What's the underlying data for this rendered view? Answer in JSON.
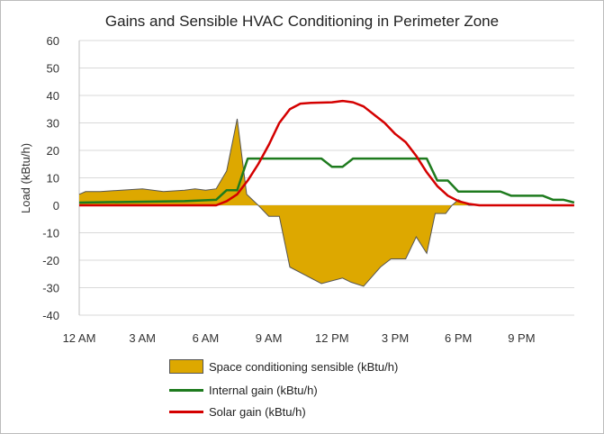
{
  "chart_data": {
    "type": "area+line",
    "title": "Gains and Sensible HVAC Conditioning in Perimeter Zone",
    "xlabel": "",
    "ylabel": "Load (kBtu/h)",
    "ylim": [
      -40,
      60
    ],
    "yticks": [
      -40,
      -30,
      -20,
      -10,
      0,
      10,
      20,
      30,
      40,
      50,
      60
    ],
    "xticks": [
      "12 AM",
      "3 AM",
      "6 AM",
      "9 AM",
      "12 PM",
      "3 PM",
      "6 PM",
      "9 PM"
    ],
    "grid": true,
    "legend": "bottom",
    "series": [
      {
        "name": "Space conditioning sensible (kBtu/h)",
        "type": "area",
        "color": "#DDA800",
        "x": [
          0,
          0.3,
          1,
          2,
          3,
          3.5,
          4,
          5,
          5.5,
          6,
          6.5,
          7,
          7.5,
          7.95,
          8.5,
          9,
          9.5,
          10,
          11.5,
          12.5,
          12.9,
          13.5,
          14.3,
          14.8,
          15.5,
          16,
          16.5,
          16.9,
          17.4,
          17.7,
          18,
          18.5,
          23.5
        ],
        "y": [
          4,
          5,
          5,
          5.5,
          6,
          5.5,
          5,
          5.5,
          6,
          5.5,
          6,
          12.5,
          31.5,
          4,
          0,
          -4,
          -4,
          -22.5,
          -28.5,
          -26.5,
          -28,
          -29.5,
          -22.5,
          -19.5,
          -19.5,
          -11.5,
          -17.5,
          -3,
          -3,
          0,
          2,
          0,
          0
        ]
      },
      {
        "name": "Internal gain (kBtu/h)",
        "type": "line",
        "color": "#1E7B1E",
        "x": [
          0,
          5,
          6.5,
          7,
          7.5,
          8,
          11.5,
          12,
          12.5,
          13,
          16.5,
          17,
          17.5,
          18,
          20,
          20.5,
          22,
          22.5,
          23,
          23.5
        ],
        "y": [
          1,
          1.5,
          2,
          5.5,
          5.5,
          17,
          17,
          14,
          14,
          17,
          17,
          9,
          9,
          5,
          5,
          3.5,
          3.5,
          2,
          2,
          1
        ]
      },
      {
        "name": "Solar gain (kBtu/h)",
        "type": "line",
        "color": "#D40000",
        "x": [
          0,
          6.5,
          7,
          7.5,
          8,
          8.5,
          9,
          9.5,
          10,
          10.5,
          11,
          12,
          12.5,
          13,
          13.5,
          14,
          14.5,
          15,
          15.5,
          16,
          16.5,
          17,
          17.5,
          18,
          18.5,
          19,
          23.5
        ],
        "y": [
          0,
          0,
          1.5,
          4,
          9,
          15,
          22,
          30,
          35,
          37,
          37.3,
          37.5,
          38,
          37.5,
          36,
          33,
          30,
          26,
          23,
          18,
          12,
          7,
          3.5,
          1.5,
          0.5,
          0,
          0
        ]
      }
    ]
  }
}
